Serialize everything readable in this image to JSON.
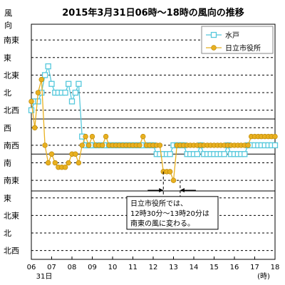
{
  "chart_data": {
    "type": "line",
    "title": "2015年3月31日06時～18時の風向の推移",
    "ylabel": "風向",
    "xlabel": "(時)",
    "date_label": "31日",
    "x_tick_labels": [
      "06",
      "07",
      "08",
      "09",
      "10",
      "11",
      "12",
      "13",
      "14",
      "15",
      "16",
      "17",
      "18"
    ],
    "xlim": [
      6,
      18
    ],
    "y_ticks": [
      {
        "value": 0,
        "label": "北西"
      },
      {
        "value": 1,
        "label": "北"
      },
      {
        "value": 2,
        "label": "北東"
      },
      {
        "value": 3,
        "label": "東"
      },
      {
        "value": 4,
        "label": "南東"
      },
      {
        "value": 5,
        "label": "南"
      },
      {
        "value": 6,
        "label": "南西"
      },
      {
        "value": 7,
        "label": "西"
      },
      {
        "value": 8,
        "label": "北西"
      },
      {
        "value": 9,
        "label": "北"
      },
      {
        "value": 10,
        "label": "北東"
      },
      {
        "value": 11,
        "label": "東"
      },
      {
        "value": 12,
        "label": "南東"
      }
    ],
    "ylim": [
      -0.5,
      12.9
    ],
    "solid_gridlines": [
      3.4,
      5.5,
      7.5
    ],
    "annotation": {
      "lines": [
        "日立市役所では、",
        "12時30分～13時20分は",
        "南東の風に変わる。"
      ],
      "interval_start": 12.5,
      "interval_end": 13.33
    },
    "series": [
      {
        "name": "水戸",
        "color": "#55c8dc",
        "marker": "square",
        "x": [
          6.0,
          6.17,
          6.33,
          6.5,
          6.67,
          6.83,
          7.0,
          7.17,
          7.33,
          7.5,
          7.67,
          7.83,
          8.0,
          8.17,
          8.33,
          8.5,
          8.67,
          8.83,
          9.0,
          9.17,
          9.33,
          9.5,
          9.67,
          9.83,
          10.0,
          10.17,
          10.33,
          10.5,
          10.67,
          10.83,
          11.0,
          11.17,
          11.33,
          11.5,
          11.67,
          11.83,
          12.0,
          12.17,
          12.33,
          12.5,
          12.67,
          12.83,
          13.0,
          13.17,
          13.33,
          13.5,
          13.67,
          13.83,
          14.0,
          14.17,
          14.33,
          14.5,
          14.67,
          14.83,
          15.0,
          15.17,
          15.33,
          15.5,
          15.67,
          15.83,
          16.0,
          16.17,
          16.33,
          16.5,
          16.67,
          16.83,
          17.0,
          17.17,
          17.33,
          17.5,
          17.67,
          17.83,
          18.0
        ],
        "y": [
          8,
          8.5,
          8.5,
          9,
          10,
          10.5,
          9.5,
          9,
          9,
          9,
          9,
          9.5,
          8.5,
          9,
          9.5,
          6.5,
          6,
          6,
          6,
          6,
          6,
          6,
          6,
          6,
          6,
          6,
          6,
          6,
          6,
          6,
          6,
          6,
          6,
          6,
          6,
          6,
          6,
          5.5,
          5.5,
          5.5,
          5.5,
          5.5,
          6,
          6,
          6,
          6,
          5.5,
          5.5,
          5.5,
          5.5,
          6,
          5.5,
          5.5,
          5.5,
          5.5,
          5.5,
          5.5,
          5.5,
          6,
          5.5,
          5.5,
          5.5,
          5.5,
          5.5,
          6,
          6,
          6,
          6,
          6,
          6,
          6,
          6,
          6
        ]
      },
      {
        "name": "日立市役所",
        "color": "#e8b020",
        "marker": "circle",
        "x": [
          6.0,
          6.17,
          6.33,
          6.5,
          6.67,
          6.83,
          7.0,
          7.17,
          7.33,
          7.5,
          7.67,
          7.83,
          8.0,
          8.17,
          8.33,
          8.5,
          8.67,
          8.83,
          9.0,
          9.17,
          9.33,
          9.5,
          9.67,
          9.83,
          10.0,
          10.17,
          10.33,
          10.5,
          10.67,
          10.83,
          11.0,
          11.17,
          11.33,
          11.5,
          11.67,
          11.83,
          12.0,
          12.17,
          12.33,
          12.5,
          12.67,
          12.83,
          13.0,
          13.17,
          13.33,
          13.5,
          13.67,
          13.83,
          14.0,
          14.17,
          14.33,
          14.5,
          14.67,
          14.83,
          15.0,
          15.17,
          15.33,
          15.5,
          15.67,
          15.83,
          16.0,
          16.17,
          16.33,
          16.5,
          16.67,
          16.83,
          17.0,
          17.17,
          17.33,
          17.5,
          17.67,
          17.83,
          18.0
        ],
        "y": [
          8.5,
          7,
          9,
          9.75,
          6,
          5,
          5.5,
          5,
          4.75,
          4.75,
          4.75,
          5,
          5.5,
          5.5,
          5,
          6,
          6.5,
          6,
          6.5,
          6,
          6,
          6,
          6.5,
          6,
          6,
          6,
          6,
          6,
          6,
          6,
          6,
          6,
          6,
          6.5,
          6,
          6,
          6,
          6,
          6,
          4.5,
          4.5,
          4.5,
          4,
          6,
          6,
          6,
          6,
          6,
          6,
          6,
          6,
          6,
          6,
          6,
          6,
          6,
          6,
          6,
          6,
          6,
          6,
          6,
          6,
          6,
          6,
          6.5,
          6.5,
          6.5,
          6.5,
          6.5,
          6.5,
          6.5,
          6.5
        ]
      }
    ]
  }
}
